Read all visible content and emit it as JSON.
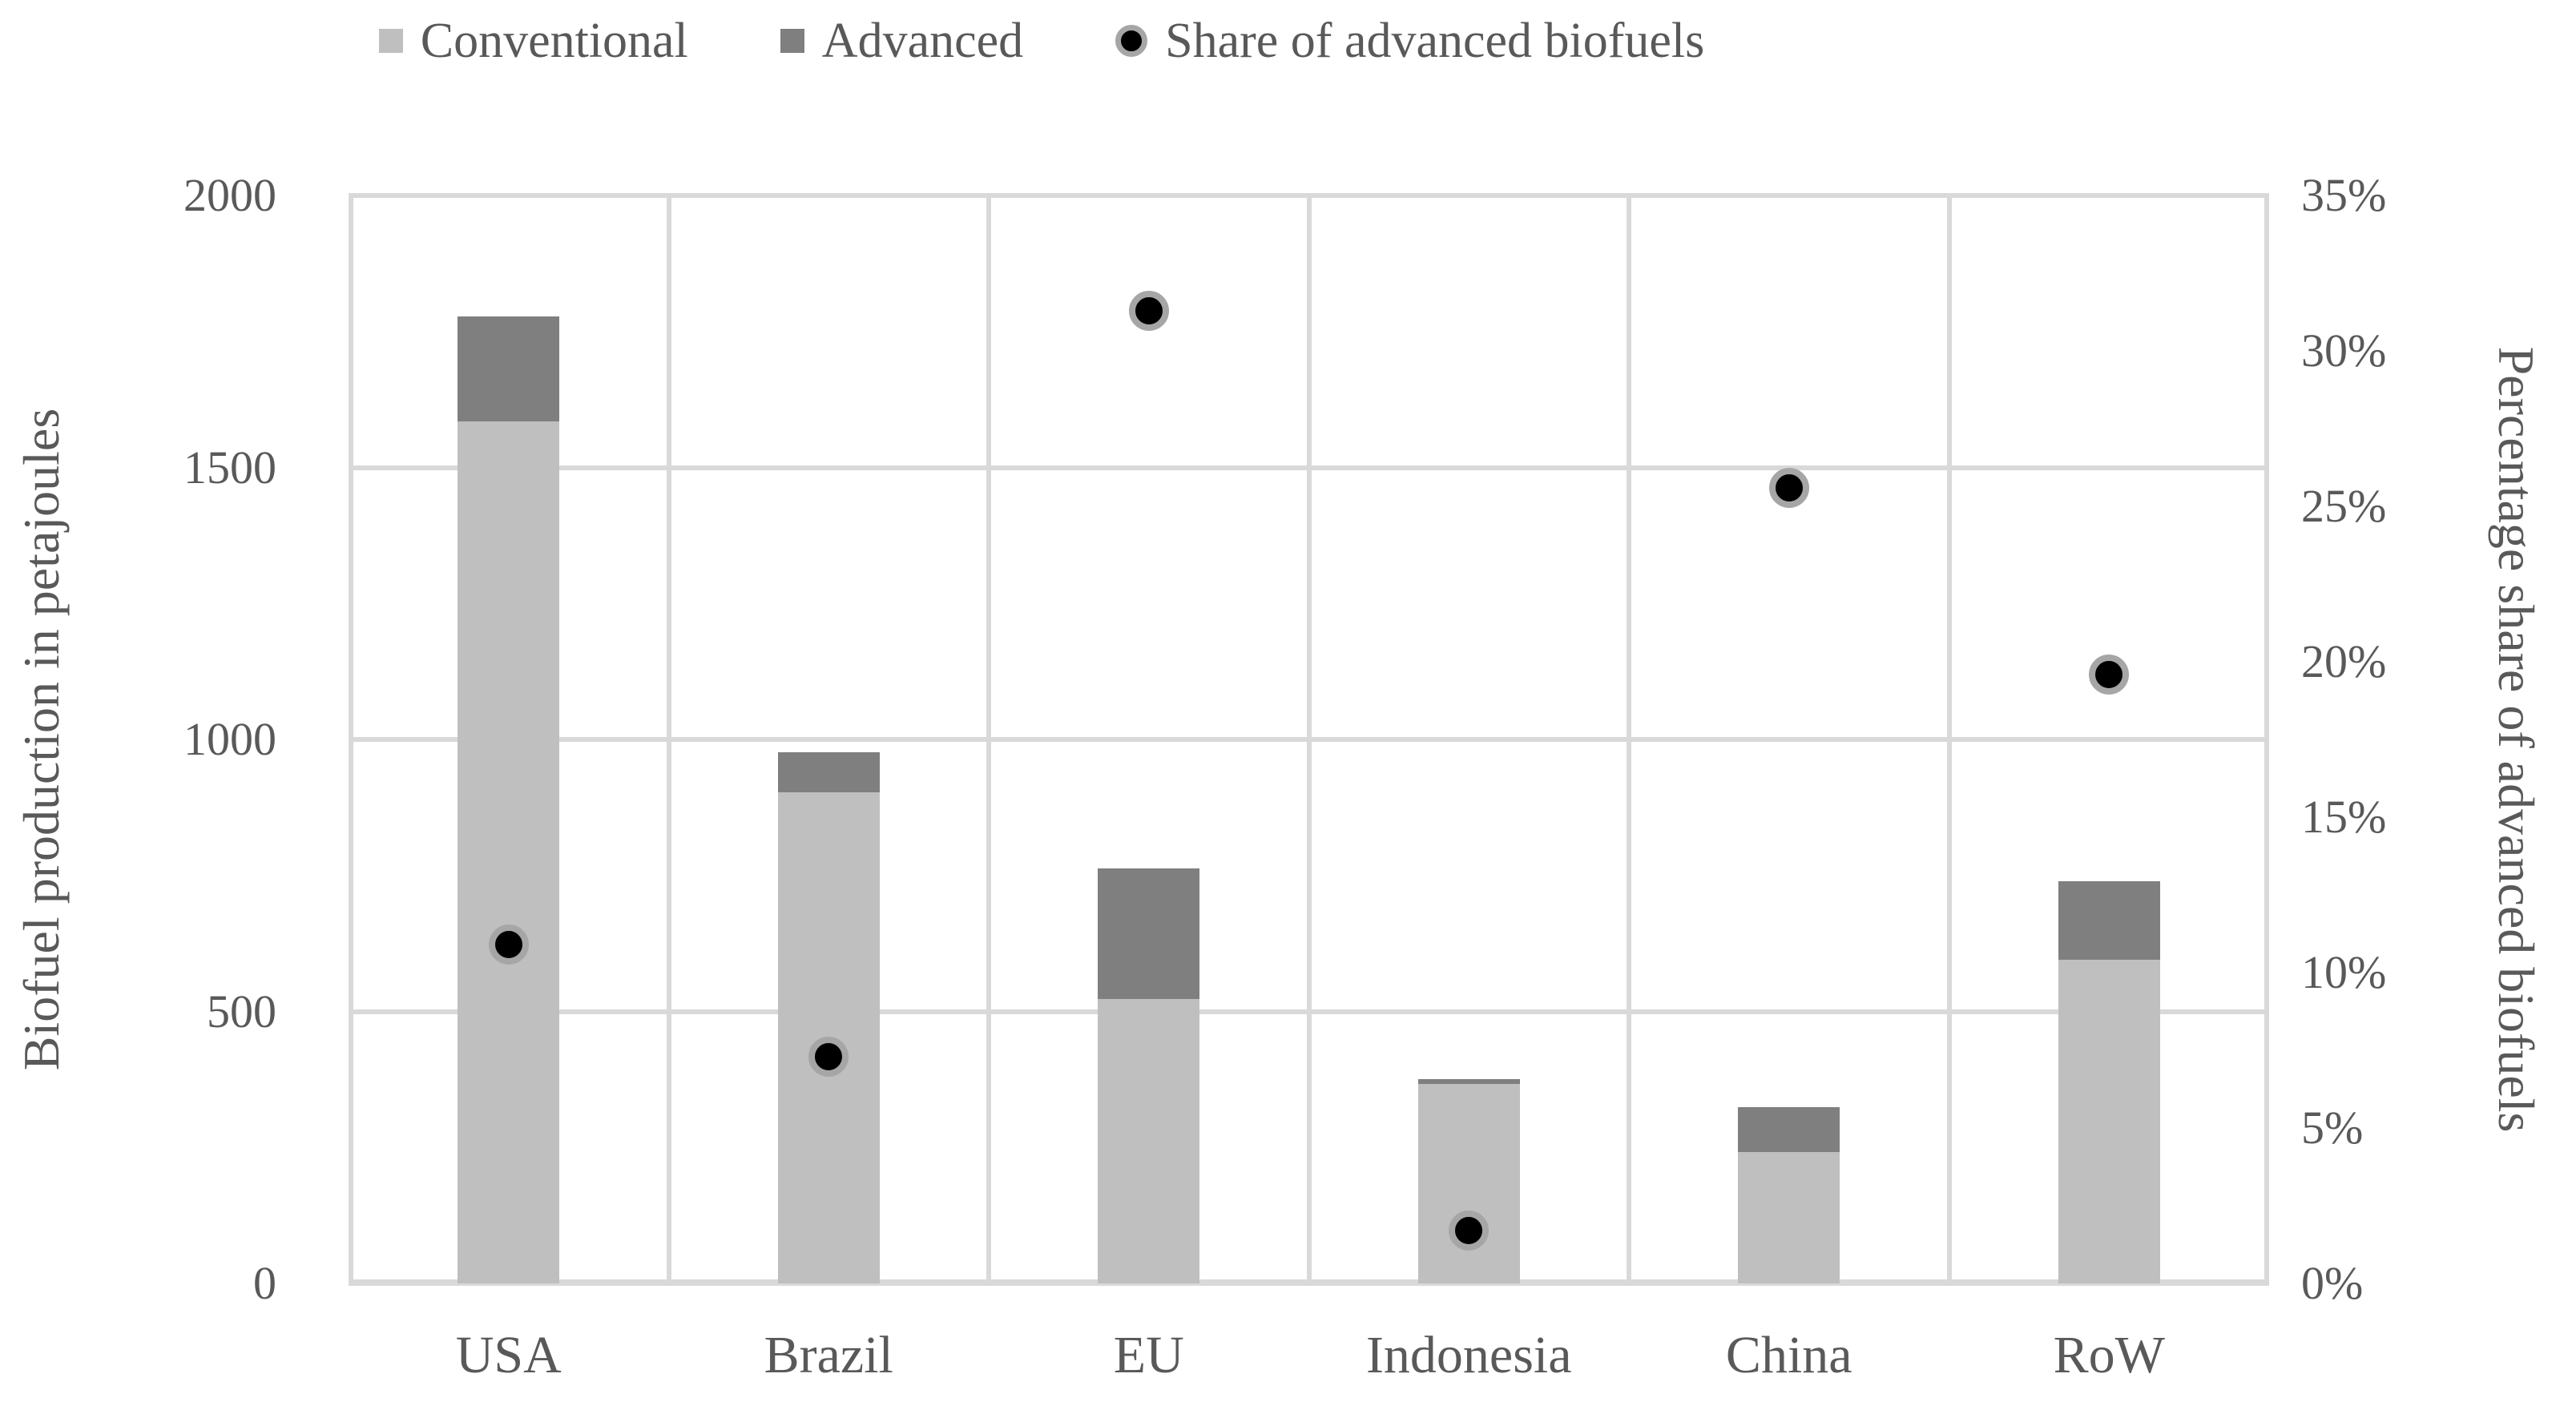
{
  "chart_data": {
    "type": "bar",
    "subtype": "stacked-bars-with-scatter-overlay",
    "categories": [
      "USA",
      "Brazil",
      "EU",
      "Indonesia",
      "China",
      "RoW"
    ],
    "series": [
      {
        "name": "Conventional",
        "type": "bar",
        "stacked": true,
        "axis": "left",
        "color": "#bfbfbf",
        "values": [
          1585,
          903,
          523,
          367,
          242,
          595
        ]
      },
      {
        "name": "Advanced",
        "type": "bar",
        "stacked": true,
        "axis": "left",
        "color": "#7f7f7f",
        "values": [
          193,
          74,
          240,
          9,
          82,
          144
        ]
      },
      {
        "name": "Share of advanced biofuels",
        "type": "scatter",
        "axis": "right",
        "color": "#000000",
        "ring_color": "#a6a6a6",
        "values_percent": [
          10.9,
          7.3,
          31.3,
          1.7,
          25.6,
          19.6
        ]
      }
    ],
    "left_axis": {
      "label": "Biofuel production in petajoules",
      "min": 0,
      "max": 2000,
      "ticks": [
        0,
        500,
        1000,
        1500,
        2000
      ]
    },
    "right_axis": {
      "label": "Percentage share of advanced biofuels",
      "min": 0,
      "max": 35,
      "ticks": [
        "0%",
        "5%",
        "10%",
        "15%",
        "20%",
        "25%",
        "30%",
        "35%"
      ]
    },
    "grid": {
      "horizontal": true,
      "vertical": true,
      "color": "#d9d9d9",
      "legend_position": "top"
    }
  }
}
